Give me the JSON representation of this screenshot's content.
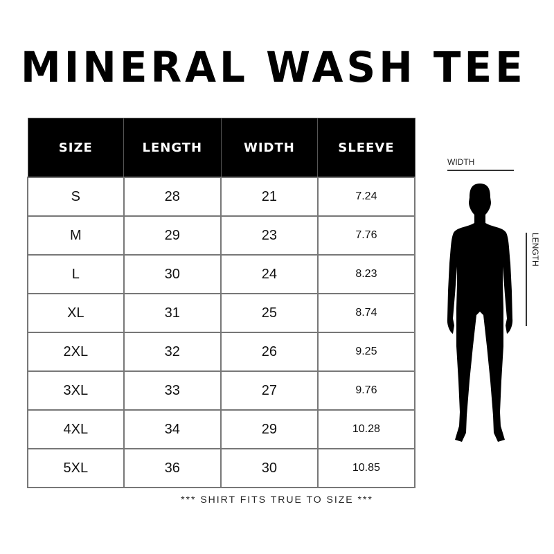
{
  "title": "MINERAL WASH TEE",
  "table": {
    "headers": [
      "SIZE",
      "LENGTH",
      "WIDTH",
      "SLEEVE"
    ],
    "rows": [
      [
        "S",
        "28",
        "21",
        "7.24"
      ],
      [
        "M",
        "29",
        "23",
        "7.76"
      ],
      [
        "L",
        "30",
        "24",
        "8.23"
      ],
      [
        "XL",
        "31",
        "25",
        "8.74"
      ],
      [
        "2XL",
        "32",
        "26",
        "9.25"
      ],
      [
        "3XL",
        "33",
        "27",
        "9.76"
      ],
      [
        "4XL",
        "34",
        "29",
        "10.28"
      ],
      [
        "5XL",
        "36",
        "30",
        "10.85"
      ]
    ]
  },
  "diagram": {
    "width_label": "WIDTH",
    "length_label": "LENGTH"
  },
  "footer": "*** SHIRT FITS TRUE TO SIZE ***"
}
